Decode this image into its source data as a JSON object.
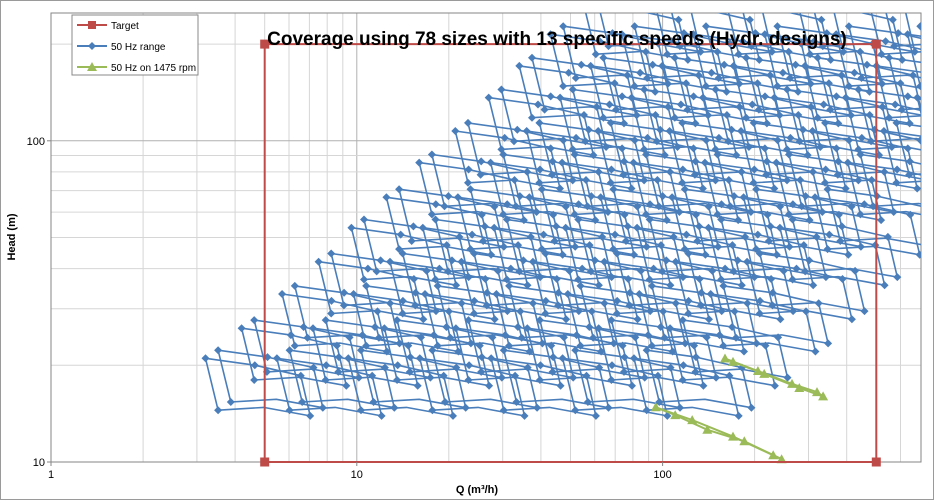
{
  "chart_data": {
    "type": "line",
    "title": "Coverage using 78 sizes with 13 specific speeds (Hydr. designs)",
    "xlabel": "Q (m³/h)",
    "ylabel": "Head (m)",
    "x_scale": "log",
    "y_scale": "log",
    "xlim": [
      1,
      700
    ],
    "ylim": [
      10,
      250
    ],
    "x_ticks": [
      "1",
      "10",
      "100"
    ],
    "y_ticks": [
      "10",
      "100"
    ],
    "grid": true,
    "legend_position": "top-left",
    "series": [
      {
        "name": "Target",
        "color": "#be4b48",
        "marker": "square",
        "points": [
          [
            5,
            10
          ],
          [
            5,
            200
          ],
          [
            500,
            200
          ],
          [
            500,
            10
          ],
          [
            5,
            10
          ]
        ]
      },
      {
        "name": "50 Hz range",
        "color": "#4a7ebb",
        "marker": "diamond",
        "design": {
          "head_min": [
            14.5,
            18,
            23,
            29,
            37,
            46,
            59,
            74,
            94,
            118,
            148,
            186
          ],
          "q_base": [
            3.2,
            4.2,
            5.7,
            7.5,
            9.6,
            12.5,
            16,
            21,
            27,
            34,
            43,
            55
          ],
          "head_ratio": [
            1.45,
            1.6,
            1.33,
            1.45
          ],
          "q_ratio": [
            1.5,
            1.8,
            1.3,
            2.0
          ],
          "steps": 4
        }
      },
      {
        "name": "50 Hz on 1475 rpm",
        "color": "#9bbb59",
        "marker": "triangle",
        "curves": [
          [
            [
              95,
              14.8
            ],
            [
              125,
              13.5
            ],
            [
              170,
              12.0
            ],
            [
              230,
              10.5
            ]
          ],
          [
            [
              160,
              21.0
            ],
            [
              205,
              19.2
            ],
            [
              265,
              17.5
            ],
            [
              320,
              16.5
            ]
          ],
          [
            [
              110,
              14.0
            ],
            [
              140,
              12.6
            ],
            [
              185,
              11.6
            ],
            [
              245,
              10.2
            ]
          ],
          [
            [
              170,
              20.5
            ],
            [
              215,
              18.8
            ],
            [
              280,
              17.0
            ],
            [
              335,
              16.0
            ]
          ]
        ]
      }
    ]
  }
}
